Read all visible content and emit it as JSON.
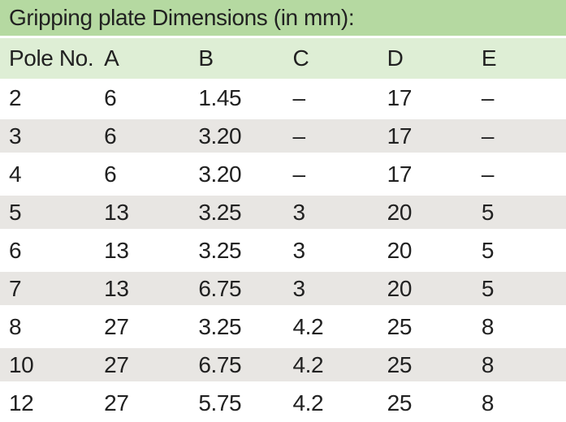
{
  "table": {
    "title": "Gripping plate Dimensions (in mm):",
    "columns": [
      "Pole No.",
      "A",
      "B",
      "C",
      "D",
      "E"
    ],
    "rows": [
      [
        "2",
        "6",
        "1.45",
        "–",
        "17",
        "–"
      ],
      [
        "3",
        "6",
        "3.20",
        "–",
        "17",
        "–"
      ],
      [
        "4",
        "6",
        "3.20",
        "–",
        "17",
        "–"
      ],
      [
        "5",
        "13",
        "3.25",
        "3",
        "20",
        "5"
      ],
      [
        "6",
        "13",
        "3.25",
        "3",
        "20",
        "5"
      ],
      [
        "7",
        "13",
        "6.75",
        "3",
        "20",
        "5"
      ],
      [
        "8",
        "27",
        "3.25",
        "4.2",
        "25",
        "8"
      ],
      [
        "10",
        "27",
        "6.75",
        "4.2",
        "25",
        "8"
      ],
      [
        "12",
        "27",
        "5.75",
        "4.2",
        "25",
        "8"
      ]
    ],
    "colors": {
      "title_bg": "#b5d9a1",
      "header_bg": "#deeed5",
      "stripe_bg": "#e8e6e3",
      "text": "#212121"
    }
  }
}
